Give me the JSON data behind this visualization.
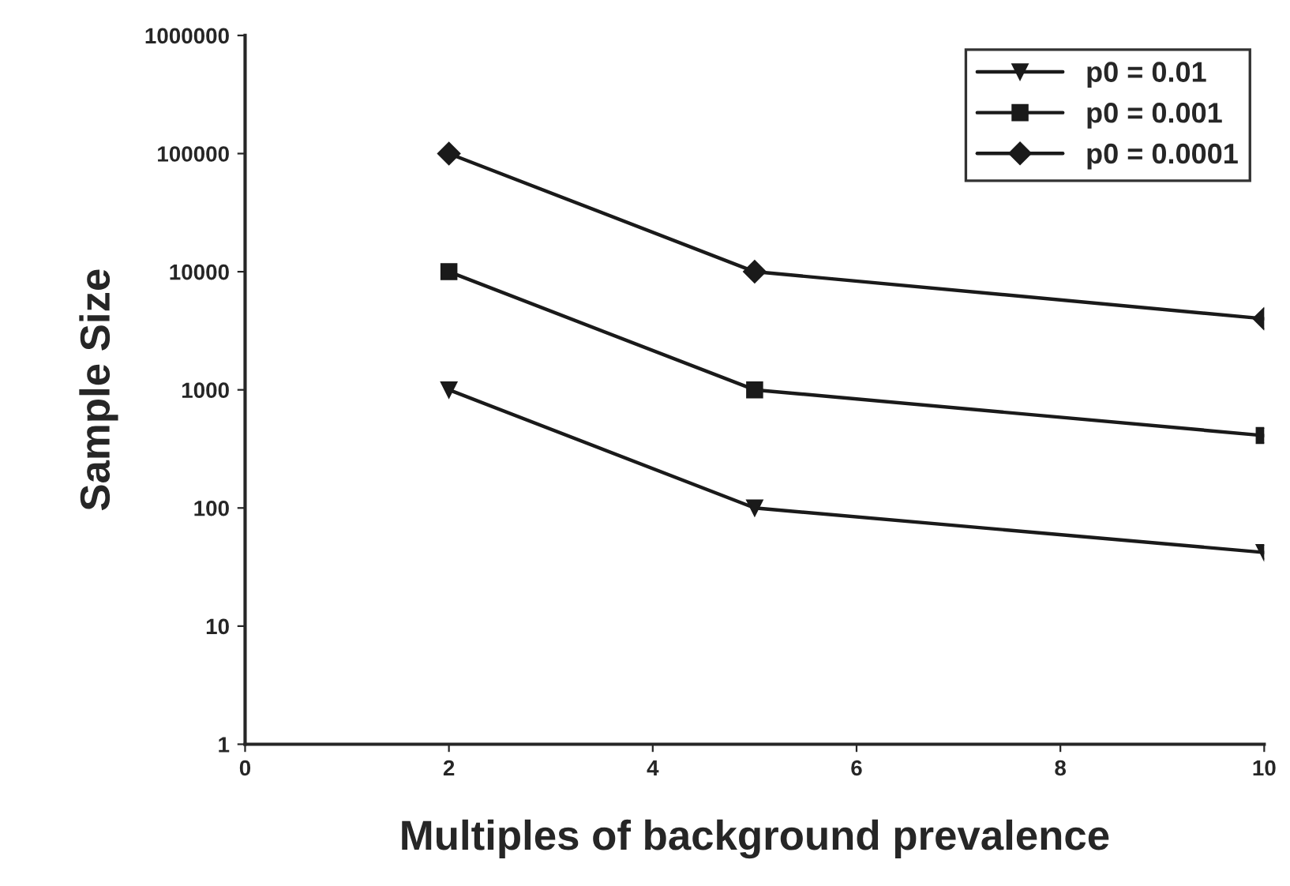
{
  "chart_data": {
    "type": "line",
    "xlabel": "Multiples of background prevalence",
    "ylabel": "Sample Size",
    "x": [
      2,
      5,
      10
    ],
    "series": [
      {
        "name": "p0 = 0.01",
        "color": "#1a1a1a",
        "marker": "triangle",
        "values": [
          1000,
          100,
          42
        ]
      },
      {
        "name": "p0 = 0.001",
        "color": "#1a1a1a",
        "marker": "square",
        "values": [
          10000,
          1000,
          410
        ]
      },
      {
        "name": "p0 = 0.0001",
        "color": "#1a1a1a",
        "marker": "diamond",
        "values": [
          100000,
          10000,
          4000
        ]
      }
    ],
    "log": "y",
    "xlim": [
      0,
      10
    ],
    "xticks": [
      0,
      2,
      4,
      6,
      8,
      10
    ],
    "ylim": [
      1,
      1000000
    ],
    "yticks": [
      1,
      10,
      100,
      1000,
      10000,
      100000,
      1000000
    ],
    "grid": false,
    "legend": "top right",
    "line_style": "solid"
  }
}
